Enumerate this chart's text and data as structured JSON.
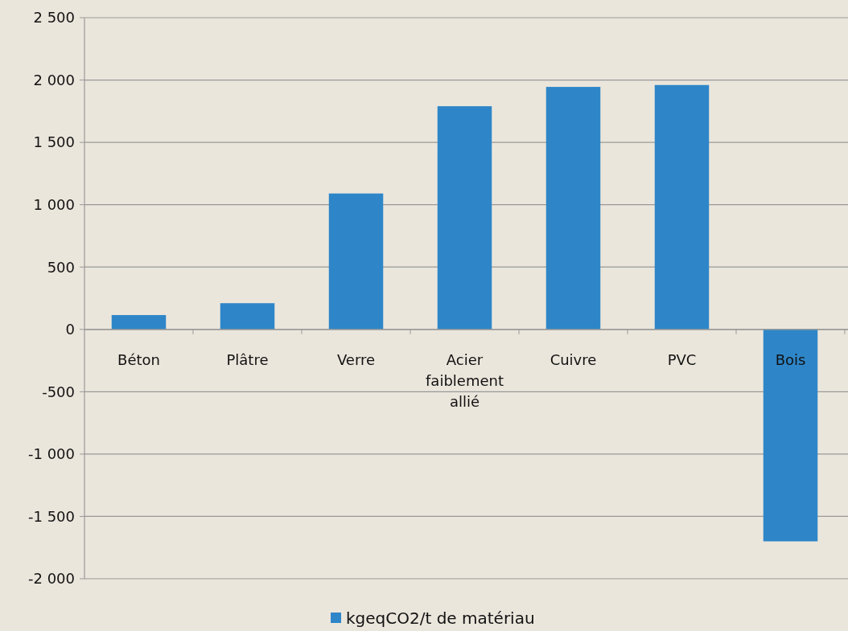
{
  "chart_data": {
    "type": "bar",
    "categories": [
      "Béton",
      "Plâtre",
      "Verre",
      "Acier faiblement allié",
      "Cuivre",
      "PVC",
      "Bois"
    ],
    "series": [
      {
        "name": "kgeqCO2/t de matériau",
        "color": "#2e86c8",
        "values": [
          115,
          210,
          1090,
          1790,
          1945,
          1960,
          -1700
        ]
      }
    ],
    "ylim": [
      -2000,
      2500
    ],
    "yticks": [
      {
        "value": -2000,
        "label": "-2 000"
      },
      {
        "value": -1500,
        "label": "-1 500"
      },
      {
        "value": -1000,
        "label": "-1 000"
      },
      {
        "value": -500,
        "label": "-500"
      },
      0,
      500,
      {
        "value": 1000,
        "label": "1 000"
      },
      {
        "value": 1500,
        "label": "1 500"
      },
      {
        "value": 2000,
        "label": "2 000"
      },
      {
        "value": 2500,
        "label": "2 500"
      }
    ],
    "grid": "y",
    "legend": "bottom"
  }
}
